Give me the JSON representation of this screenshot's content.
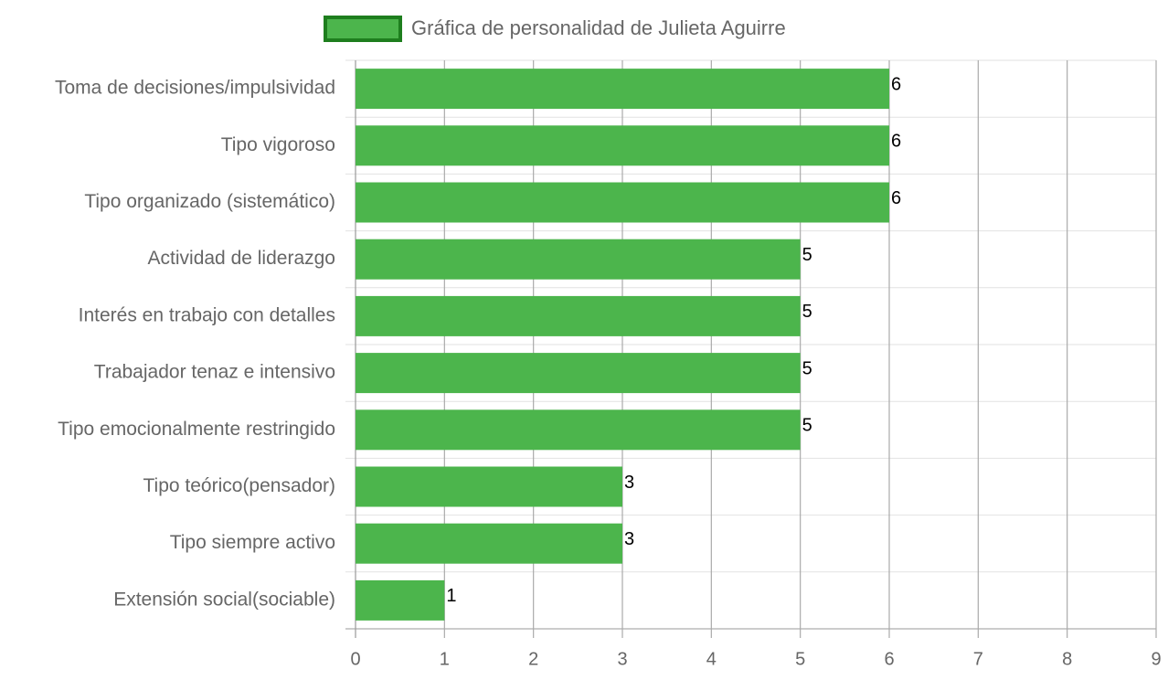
{
  "chart_data": {
    "type": "bar",
    "orientation": "horizontal",
    "categories": [
      "Toma de decisiones/impulsividad",
      "Tipo vigoroso",
      "Tipo organizado (sistemático)",
      "Actividad de liderazgo",
      "Interés en trabajo con detalles",
      "Trabajador tenaz e intensivo",
      "Tipo emocionalmente restringido",
      "Tipo teórico(pensador)",
      "Tipo siempre activo",
      "Extensión social(sociable)"
    ],
    "series": [
      {
        "name": "Gráfica de personalidad de Julieta Aguirre",
        "color": "#4cb54c",
        "border_color": "#1e7e1e",
        "values": [
          6,
          6,
          6,
          5,
          5,
          5,
          5,
          3,
          3,
          1
        ]
      }
    ],
    "xlim": [
      0,
      9
    ],
    "xticks": [
      0,
      1,
      2,
      3,
      4,
      5,
      6,
      7,
      8,
      9
    ],
    "grid": true,
    "legend": "top",
    "show_value_labels": true
  }
}
